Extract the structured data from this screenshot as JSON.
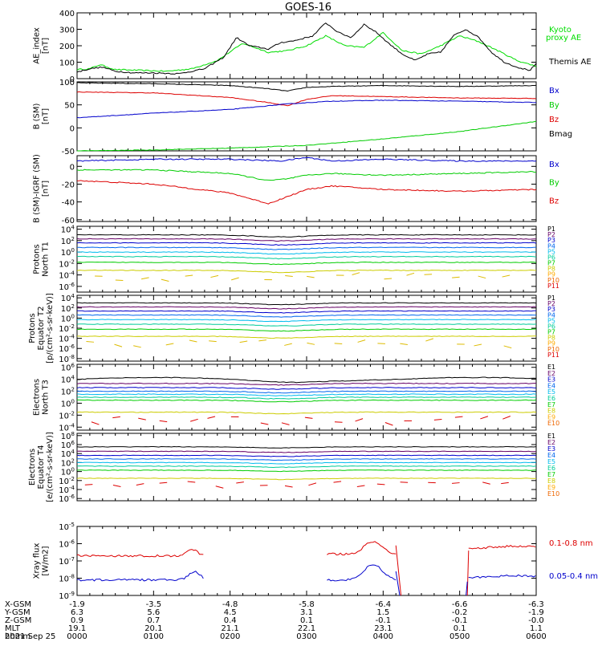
{
  "title": "GOES-16",
  "chart_data": [
    {
      "type": "line",
      "id": "ae",
      "ylabel": [
        "AE_index",
        "[nT]"
      ],
      "ticks": [
        "400",
        "300",
        "200",
        "100",
        "0"
      ],
      "ylim": [
        0,
        400
      ],
      "legend": [
        {
          "name": "Kyoto",
          "color": "#00dd00"
        },
        {
          "name": "proxy AE",
          "color": "#00dd00"
        },
        {
          "name": "Themis AE",
          "color": "#000000"
        }
      ],
      "series": [
        {
          "name": "Kyoto proxy AE",
          "color": "#00dd00",
          "x": [
            0,
            10,
            18,
            30,
            50,
            70,
            90,
            110,
            130,
            150,
            165,
            180,
            195,
            210,
            225,
            240,
            255,
            270,
            285,
            300,
            315,
            330,
            345,
            360
          ],
          "y": [
            55,
            60,
            85,
            55,
            50,
            45,
            60,
            110,
            215,
            160,
            170,
            200,
            260,
            200,
            190,
            280,
            170,
            150,
            200,
            260,
            225,
            170,
            110,
            75
          ]
        },
        {
          "name": "Themis AE",
          "color": "#000000",
          "x": [
            0,
            10,
            20,
            30,
            45,
            60,
            80,
            100,
            115,
            125,
            135,
            150,
            160,
            170,
            185,
            195,
            205,
            215,
            225,
            235,
            245,
            255,
            265,
            275,
            285,
            295,
            305,
            315,
            325,
            335,
            345,
            355,
            360
          ],
          "y": [
            40,
            60,
            70,
            45,
            35,
            35,
            30,
            60,
            130,
            250,
            200,
            180,
            220,
            230,
            260,
            340,
            280,
            250,
            330,
            280,
            210,
            150,
            110,
            150,
            160,
            260,
            300,
            250,
            160,
            100,
            70,
            50,
            90
          ]
        }
      ]
    },
    {
      "type": "line",
      "id": "bsm",
      "ylabel": [
        "B (SM)",
        "[nT]"
      ],
      "ticks": [
        "100",
        "50",
        "0",
        "-50"
      ],
      "ylim": [
        -50,
        100
      ],
      "legend": [
        {
          "name": "Bx",
          "color": "#0000cc"
        },
        {
          "name": "By",
          "color": "#00cc00"
        },
        {
          "name": "Bz",
          "color": "#dd0000"
        },
        {
          "name": "Bmag",
          "color": "#000000"
        }
      ],
      "series": [
        {
          "name": "Bmag",
          "color": "#000000",
          "x": [
            0,
            60,
            120,
            150,
            165,
            180,
            200,
            240,
            300,
            360
          ],
          "y": [
            98,
            96,
            92,
            85,
            80,
            88,
            90,
            92,
            90,
            92
          ]
        },
        {
          "name": "Bz",
          "color": "#dd0000",
          "x": [
            0,
            60,
            120,
            150,
            165,
            180,
            200,
            240,
            300,
            360
          ],
          "y": [
            78,
            76,
            66,
            55,
            48,
            62,
            70,
            68,
            65,
            64
          ]
        },
        {
          "name": "Bx",
          "color": "#0000cc",
          "x": [
            0,
            60,
            120,
            165,
            200,
            240,
            300,
            360
          ],
          "y": [
            22,
            32,
            40,
            52,
            58,
            60,
            58,
            55
          ]
        },
        {
          "name": "By",
          "color": "#00cc00",
          "x": [
            0,
            60,
            120,
            180,
            240,
            300,
            360
          ],
          "y": [
            -50,
            -48,
            -44,
            -38,
            -24,
            -8,
            14
          ]
        }
      ]
    },
    {
      "type": "line",
      "id": "bigrf",
      "ylabel": [
        "B (SM)-IGRF (SM)",
        "[nT]"
      ],
      "ticks": [
        "0",
        "-20",
        "-40",
        "-60"
      ],
      "ylim": [
        -62,
        12
      ],
      "legend": [
        {
          "name": "Bx",
          "color": "#0000cc"
        },
        {
          "name": "By",
          "color": "#00cc00"
        },
        {
          "name": "Bz",
          "color": "#dd0000"
        }
      ],
      "series": [
        {
          "name": "Bx",
          "color": "#0000cc",
          "x": [
            0,
            60,
            120,
            160,
            180,
            200,
            240,
            300,
            360
          ],
          "y": [
            6,
            8,
            8,
            6,
            10,
            6,
            8,
            6,
            6
          ]
        },
        {
          "name": "By",
          "color": "#00cc00",
          "x": [
            0,
            60,
            120,
            150,
            165,
            180,
            200,
            240,
            300,
            360
          ],
          "y": [
            -4,
            -4,
            -8,
            -16,
            -14,
            -10,
            -8,
            -10,
            -8,
            -6
          ]
        },
        {
          "name": "Bz",
          "color": "#dd0000",
          "x": [
            0,
            60,
            120,
            150,
            165,
            180,
            200,
            240,
            300,
            360
          ],
          "y": [
            -16,
            -20,
            -30,
            -42,
            -34,
            -26,
            -22,
            -26,
            -28,
            -26
          ]
        }
      ]
    },
    {
      "type": "line",
      "id": "protons_t1",
      "ylabel": [
        "Protons",
        "North T1"
      ],
      "log_scale": true,
      "ticks": [
        "10^4",
        "10^2",
        "10^0",
        "10^-2",
        "10^-4",
        "10^-6"
      ],
      "ylim_exp": [
        -7,
        4.5
      ],
      "legend": [
        "P1",
        "P2",
        "P3",
        "P4",
        "P5",
        "P6",
        "P7",
        "P8",
        "P9",
        "P10",
        "P11"
      ],
      "channels_exp": [
        3.0,
        2.3,
        1.6,
        0.8,
        0.0,
        -0.8,
        -1.8,
        -3.2
      ]
    },
    {
      "type": "line",
      "id": "protons_t2",
      "ylabel": [
        "Protons",
        "Equator T2",
        "[p/(cm²-s-sr-keV)]"
      ],
      "log_scale": true,
      "ticks": [
        "10^4",
        "10^2",
        "10^0",
        "10^-2",
        "10^-4",
        "10^-6",
        "10^-8"
      ],
      "ylim_exp": [
        -8.5,
        4.5
      ],
      "legend": [
        "P1",
        "P2",
        "P3",
        "P4",
        "P5",
        "P6",
        "P7",
        "P8",
        "P9",
        "P10",
        "P11"
      ],
      "channels_exp": [
        3.0,
        2.2,
        1.4,
        0.6,
        -0.3,
        -1.2,
        -2.2,
        -3.6
      ]
    },
    {
      "type": "line",
      "id": "electrons_t3",
      "ylabel": [
        "Electrons",
        "North T3"
      ],
      "log_scale": true,
      "ticks": [
        "10^6",
        "10^4",
        "10^2",
        "10^0",
        "10^-2",
        "10^-4"
      ],
      "ylim_exp": [
        -4.5,
        6.5
      ],
      "legend": [
        "E1",
        "E2",
        "E3",
        "E4",
        "E5",
        "E6",
        "E7",
        "E8",
        "E9",
        "E10"
      ],
      "channels_exp": [
        4.0,
        3.3,
        2.6,
        2.0,
        1.5,
        1.0,
        0.5,
        -1.5
      ]
    },
    {
      "type": "line",
      "id": "electrons_t4",
      "ylabel": [
        "Electrons",
        "Equator T4",
        "[e/(cm²-s-sr-keV)]"
      ],
      "log_scale": true,
      "ticks": [
        "10^8",
        "10^6",
        "10^4",
        "10^2",
        "10^0",
        "10^-2",
        "10^-4",
        "10^-6"
      ],
      "ylim_exp": [
        -6.5,
        8.5
      ],
      "legend": [
        "E1",
        "E2",
        "E3",
        "E4",
        "E5",
        "E6",
        "E7",
        "E8",
        "E9",
        "E10"
      ],
      "channels_exp": [
        5.5,
        4.5,
        3.6,
        2.8,
        2.0,
        1.2,
        0.3,
        -1.5
      ]
    },
    {
      "type": "line",
      "id": "xray",
      "ylabel": [
        "Xray flux",
        "[W/m2]"
      ],
      "log_scale": true,
      "ticks": [
        "10^-5",
        "10^-6",
        "10^-7",
        "10^-8",
        "10^-9"
      ],
      "ylim_exp": [
        -9,
        -5
      ],
      "legend": [
        {
          "name": "0.1-0.8 nm",
          "color": "#dd0000"
        },
        {
          "name": "0.05-0.4 nm",
          "color": "#0000cc"
        }
      ]
    }
  ],
  "palette": [
    "#000000",
    "#660066",
    "#0000cc",
    "#0066ee",
    "#00bbee",
    "#00cc99",
    "#00cc00",
    "#cccc00",
    "#ffaa00",
    "#ee6600",
    "#dd0000",
    "#aa0000"
  ],
  "x_axis": {
    "rows": [
      {
        "label": "X-GSM",
        "values": [
          "-1.9",
          "-3.5",
          "-4.8",
          "-5.8",
          "-6.4",
          "-6.6",
          "-6.3"
        ]
      },
      {
        "label": "Y-GSM",
        "values": [
          "6.3",
          "5.6",
          "4.5",
          "3.1",
          "1.5",
          "-0.2",
          "-1.9"
        ]
      },
      {
        "label": "Z-GSM",
        "values": [
          "0.9",
          "0.7",
          "0.4",
          "0.1",
          "-0.1",
          "-0.1",
          "-0.0"
        ]
      },
      {
        "label": "MLT",
        "values": [
          "19.1",
          "20.1",
          "21.1",
          "22.1",
          "23.1",
          "0.1",
          "1.1"
        ]
      },
      {
        "label": "hhmm",
        "values": [
          "0000",
          "0100",
          "0200",
          "0300",
          "0400",
          "0500",
          "0600"
        ]
      }
    ],
    "date": "2021 Sep 25"
  }
}
